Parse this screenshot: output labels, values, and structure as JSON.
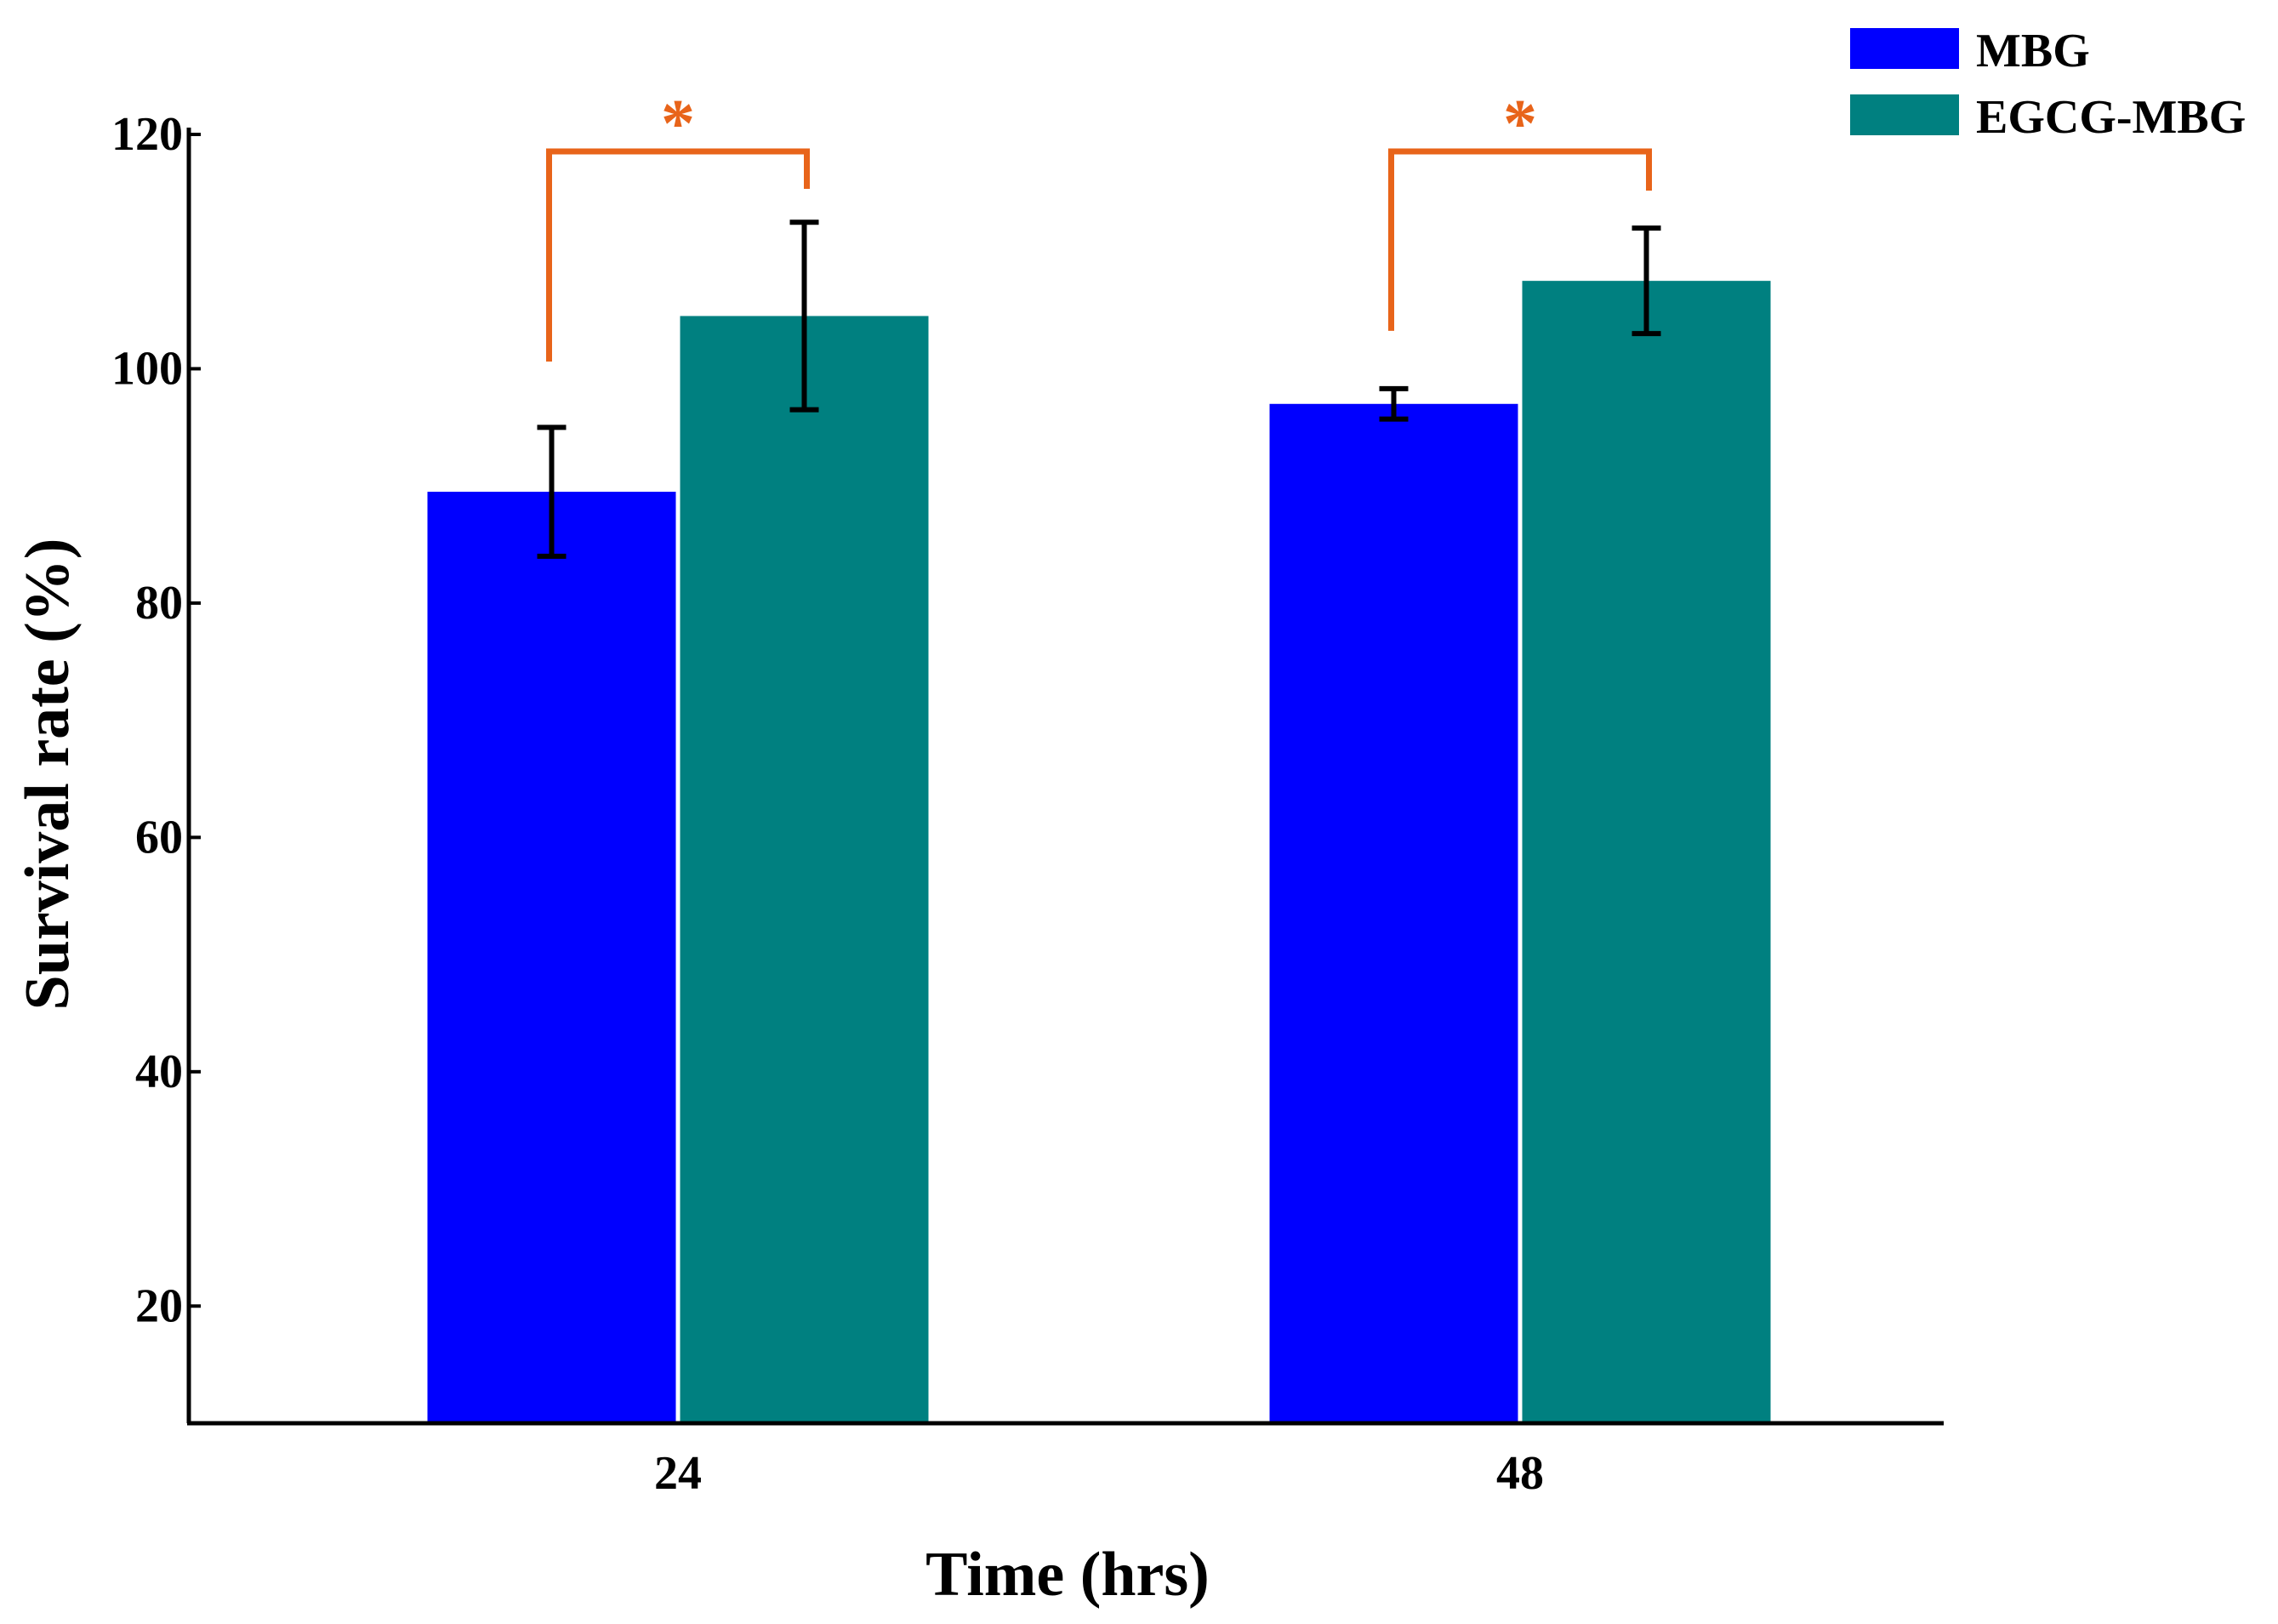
{
  "chart_data": {
    "type": "bar",
    "title": "",
    "xlabel": "Time (hrs)",
    "ylabel": "Survival rate (%)",
    "categories": [
      "24",
      "48"
    ],
    "series": [
      {
        "name": "MBG",
        "color": "#0000ff",
        "values": [
          89.5,
          97.0
        ],
        "errors": [
          5.5,
          1.3
        ]
      },
      {
        "name": "EGCG-MBG",
        "color": "#008080",
        "values": [
          104.5,
          107.5
        ],
        "errors": [
          8.0,
          4.5
        ]
      }
    ],
    "ylim": [
      10,
      120
    ],
    "yticks": [
      20,
      40,
      60,
      80,
      100,
      120
    ],
    "significance": [
      {
        "category": "24",
        "label": "*"
      },
      {
        "category": "48",
        "label": "*"
      }
    ],
    "significance_color": "#e8641a",
    "legend_position": "top-right",
    "grid": false
  }
}
